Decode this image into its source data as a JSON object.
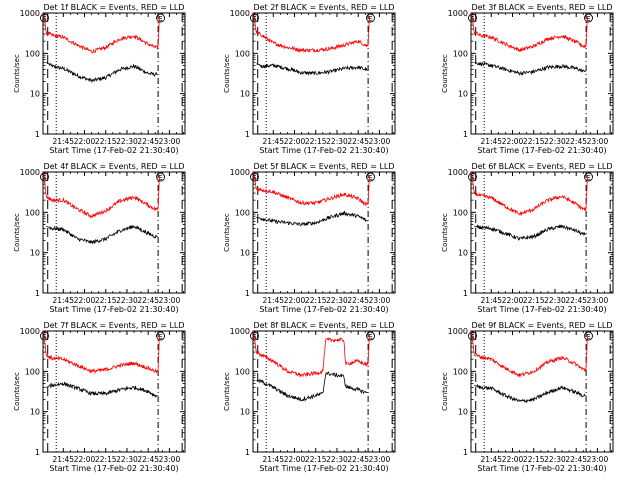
{
  "figure": {
    "xlabel": "Start Time (17-Feb-02 21:30:40)",
    "ylabel": "Counts/sec",
    "y_tick_labels": [
      "1",
      "10",
      "100",
      "1000"
    ],
    "x_tick_labels": [
      "21:45",
      "22:00",
      "22:15",
      "22:30",
      "22:45",
      "23:00"
    ],
    "annotation_S": "S",
    "annotation_E": "E"
  },
  "colors": {
    "events": "#000000",
    "lld": "#ff0000",
    "axes": "#000000"
  },
  "chart_data": [
    {
      "type": "line",
      "title": "Det 1f BLACK = Events, RED = LLD",
      "xlabel": "Start Time (17-Feb-02 21:30:40)",
      "ylabel": "Counts/sec",
      "y_scale": "log",
      "ylim": [
        1,
        1000
      ],
      "x_ticks": [
        "21:45",
        "22:00",
        "22:15",
        "22:30",
        "22:45",
        "23:00"
      ],
      "series": [
        {
          "name": "Events",
          "color": "black",
          "x": [
            "21:33",
            "21:37",
            "21:45",
            "21:55",
            "22:05",
            "22:15",
            "22:25",
            "22:35",
            "22:45",
            "22:50",
            "22:52"
          ],
          "values": [
            60,
            48,
            42,
            28,
            21,
            25,
            40,
            48,
            32,
            30,
            30
          ]
        },
        {
          "name": "LLD",
          "color": "red",
          "x": [
            "21:31",
            "21:33",
            "21:37",
            "21:45",
            "21:55",
            "22:05",
            "22:15",
            "22:25",
            "22:35",
            "22:45",
            "22:50",
            "22:52",
            "22:53"
          ],
          "values": [
            1000,
            330,
            280,
            250,
            160,
            110,
            140,
            230,
            270,
            170,
            140,
            140,
            1000
          ]
        }
      ]
    },
    {
      "type": "line",
      "title": "Det 2f BLACK = Events, RED = LLD",
      "xlabel": "Start Time (17-Feb-02 21:30:40)",
      "ylabel": "Counts/sec",
      "y_scale": "log",
      "ylim": [
        1,
        1000
      ],
      "x_ticks": [
        "21:45",
        "22:00",
        "22:15",
        "22:30",
        "22:45",
        "23:00"
      ],
      "series": [
        {
          "name": "Events",
          "color": "black",
          "x": [
            "21:33",
            "21:37",
            "21:45",
            "21:55",
            "22:05",
            "22:15",
            "22:25",
            "22:35",
            "22:45",
            "22:50",
            "22:52"
          ],
          "values": [
            55,
            48,
            50,
            42,
            33,
            32,
            35,
            42,
            45,
            40,
            38
          ]
        },
        {
          "name": "LLD",
          "color": "red",
          "x": [
            "21:31",
            "21:33",
            "21:37",
            "21:45",
            "21:55",
            "22:05",
            "22:15",
            "22:25",
            "22:35",
            "22:45",
            "22:50",
            "22:52",
            "22:53"
          ],
          "values": [
            1000,
            330,
            280,
            180,
            140,
            120,
            120,
            130,
            160,
            200,
            160,
            150,
            1000
          ]
        }
      ]
    },
    {
      "type": "line",
      "title": "Det 3f BLACK = Events, RED = LLD",
      "xlabel": "Start Time (17-Feb-02 21:30:40)",
      "ylabel": "Counts/sec",
      "y_scale": "log",
      "ylim": [
        1,
        1000
      ],
      "x_ticks": [
        "21:45",
        "22:00",
        "22:15",
        "22:30",
        "22:45",
        "23:00"
      ],
      "series": [
        {
          "name": "Events",
          "color": "black",
          "x": [
            "21:33",
            "21:37",
            "21:45",
            "21:55",
            "22:05",
            "22:15",
            "22:25",
            "22:35",
            "22:45",
            "22:50",
            "22:52"
          ],
          "values": [
            60,
            55,
            50,
            40,
            32,
            35,
            45,
            48,
            42,
            36,
            35
          ]
        },
        {
          "name": "LLD",
          "color": "red",
          "x": [
            "21:31",
            "21:33",
            "21:37",
            "21:45",
            "21:55",
            "22:05",
            "22:15",
            "22:25",
            "22:35",
            "22:45",
            "22:50",
            "22:52",
            "22:53"
          ],
          "values": [
            1000,
            330,
            280,
            250,
            170,
            120,
            150,
            230,
            270,
            190,
            150,
            150,
            1000
          ]
        }
      ]
    },
    {
      "type": "line",
      "title": "Det 4f BLACK = Events, RED = LLD",
      "xlabel": "Start Time (17-Feb-02 21:30:40)",
      "ylabel": "Counts/sec",
      "y_scale": "log",
      "ylim": [
        1,
        1000
      ],
      "x_ticks": [
        "21:45",
        "22:00",
        "22:15",
        "22:30",
        "22:45",
        "23:00"
      ],
      "series": [
        {
          "name": "Events",
          "color": "black",
          "x": [
            "21:33",
            "21:37",
            "21:45",
            "21:55",
            "22:05",
            "22:15",
            "22:25",
            "22:35",
            "22:45",
            "22:50",
            "22:52"
          ],
          "values": [
            45,
            40,
            38,
            22,
            18,
            22,
            35,
            45,
            30,
            25,
            25
          ]
        },
        {
          "name": "LLD",
          "color": "red",
          "x": [
            "21:31",
            "21:33",
            "21:37",
            "21:45",
            "21:55",
            "22:05",
            "22:15",
            "22:25",
            "22:35",
            "22:45",
            "22:50",
            "22:52",
            "22:53"
          ],
          "values": [
            1000,
            250,
            200,
            200,
            120,
            80,
            110,
            190,
            240,
            150,
            120,
            120,
            1000
          ]
        }
      ]
    },
    {
      "type": "line",
      "title": "Det 5f BLACK = Events, RED = LLD",
      "xlabel": "Start Time (17-Feb-02 21:30:40)",
      "ylabel": "Counts/sec",
      "y_scale": "log",
      "ylim": [
        1,
        1000
      ],
      "x_ticks": [
        "21:45",
        "22:00",
        "22:15",
        "22:30",
        "22:45",
        "23:00"
      ],
      "series": [
        {
          "name": "Events",
          "color": "black",
          "x": [
            "21:33",
            "21:37",
            "21:45",
            "21:55",
            "22:05",
            "22:15",
            "22:25",
            "22:35",
            "22:45",
            "22:50",
            "22:52"
          ],
          "values": [
            75,
            70,
            60,
            55,
            50,
            55,
            75,
            95,
            80,
            65,
            60
          ]
        },
        {
          "name": "LLD",
          "color": "red",
          "x": [
            "21:31",
            "21:33",
            "21:37",
            "21:45",
            "21:55",
            "22:05",
            "22:15",
            "22:25",
            "22:35",
            "22:45",
            "22:50",
            "22:52",
            "22:53"
          ],
          "values": [
            1000,
            380,
            360,
            320,
            230,
            170,
            170,
            220,
            280,
            220,
            160,
            160,
            1000
          ]
        }
      ]
    },
    {
      "type": "line",
      "title": "Det 6f BLACK = Events, RED = LLD",
      "xlabel": "Start Time (17-Feb-02 21:30:40)",
      "ylabel": "Counts/sec",
      "y_scale": "log",
      "ylim": [
        1,
        1000
      ],
      "x_ticks": [
        "21:45",
        "22:00",
        "22:15",
        "22:30",
        "22:45",
        "23:00"
      ],
      "series": [
        {
          "name": "Events",
          "color": "black",
          "x": [
            "21:33",
            "21:37",
            "21:45",
            "21:55",
            "22:05",
            "22:15",
            "22:25",
            "22:35",
            "22:45",
            "22:50",
            "22:52"
          ],
          "values": [
            45,
            42,
            40,
            30,
            22,
            25,
            38,
            45,
            35,
            28,
            28
          ]
        },
        {
          "name": "LLD",
          "color": "red",
          "x": [
            "21:31",
            "21:33",
            "21:37",
            "21:45",
            "21:55",
            "22:05",
            "22:15",
            "22:25",
            "22:35",
            "22:45",
            "22:50",
            "22:52",
            "22:53"
          ],
          "values": [
            1000,
            300,
            260,
            230,
            140,
            90,
            120,
            200,
            250,
            160,
            120,
            120,
            1000
          ]
        }
      ]
    },
    {
      "type": "line",
      "title": "Det 7f BLACK = Events, RED = LLD",
      "xlabel": "Start Time (17-Feb-02 21:30:40)",
      "ylabel": "Counts/sec",
      "y_scale": "log",
      "ylim": [
        1,
        1000
      ],
      "x_ticks": [
        "21:45",
        "22:00",
        "22:15",
        "22:30",
        "22:45",
        "23:00"
      ],
      "series": [
        {
          "name": "Events",
          "color": "black",
          "x": [
            "21:33",
            "21:37",
            "21:45",
            "21:55",
            "22:05",
            "22:15",
            "22:25",
            "22:35",
            "22:45",
            "22:50",
            "22:52"
          ],
          "values": [
            40,
            45,
            50,
            38,
            28,
            28,
            35,
            40,
            32,
            25,
            25
          ]
        },
        {
          "name": "LLD",
          "color": "red",
          "x": [
            "21:31",
            "21:33",
            "21:37",
            "21:45",
            "21:55",
            "22:05",
            "22:15",
            "22:25",
            "22:35",
            "22:45",
            "22:50",
            "22:52",
            "22:53"
          ],
          "values": [
            1000,
            250,
            210,
            200,
            140,
            100,
            110,
            140,
            160,
            120,
            100,
            100,
            1000
          ]
        }
      ]
    },
    {
      "type": "line",
      "title": "Det 8f BLACK = Events, RED = LLD",
      "xlabel": "Start Time (17-Feb-02 21:30:40)",
      "ylabel": "Counts/sec",
      "y_scale": "log",
      "ylim": [
        1,
        1000
      ],
      "x_ticks": [
        "21:45",
        "22:00",
        "22:15",
        "22:30",
        "22:45",
        "23:00"
      ],
      "series": [
        {
          "name": "Events",
          "color": "black",
          "x": [
            "21:33",
            "21:37",
            "21:45",
            "21:55",
            "22:05",
            "22:15",
            "22:20",
            "22:22",
            "22:30",
            "22:35",
            "22:36",
            "22:45",
            "22:50",
            "22:52"
          ],
          "values": [
            60,
            55,
            40,
            25,
            20,
            25,
            28,
            90,
            80,
            75,
            42,
            35,
            30,
            30
          ]
        },
        {
          "name": "LLD",
          "color": "red",
          "x": [
            "21:31",
            "21:33",
            "21:37",
            "21:45",
            "21:55",
            "22:05",
            "22:15",
            "22:20",
            "22:22",
            "22:30",
            "22:35",
            "22:36",
            "22:45",
            "22:50",
            "22:52",
            "22:53"
          ],
          "values": [
            1000,
            300,
            250,
            180,
            100,
            80,
            90,
            100,
            600,
            600,
            600,
            150,
            180,
            150,
            150,
            1000
          ]
        }
      ]
    },
    {
      "type": "line",
      "title": "Det 9f BLACK = Events, RED = LLD",
      "xlabel": "Start Time (17-Feb-02 21:30:40)",
      "ylabel": "Counts/sec",
      "y_scale": "log",
      "ylim": [
        1,
        1000
      ],
      "x_ticks": [
        "21:45",
        "22:00",
        "22:15",
        "22:30",
        "22:45",
        "23:00"
      ],
      "series": [
        {
          "name": "Events",
          "color": "black",
          "x": [
            "21:33",
            "21:37",
            "21:45",
            "21:55",
            "22:05",
            "22:15",
            "22:25",
            "22:35",
            "22:45",
            "22:50",
            "22:52"
          ],
          "values": [
            45,
            40,
            38,
            25,
            18,
            20,
            30,
            40,
            30,
            25,
            25
          ]
        },
        {
          "name": "LLD",
          "color": "red",
          "x": [
            "21:31",
            "21:33",
            "21:37",
            "21:45",
            "21:55",
            "22:05",
            "22:15",
            "22:25",
            "22:35",
            "22:45",
            "22:50",
            "22:52",
            "22:53"
          ],
          "values": [
            1000,
            260,
            230,
            200,
            120,
            80,
            100,
            170,
            220,
            150,
            110,
            110,
            1000
          ]
        }
      ]
    }
  ]
}
